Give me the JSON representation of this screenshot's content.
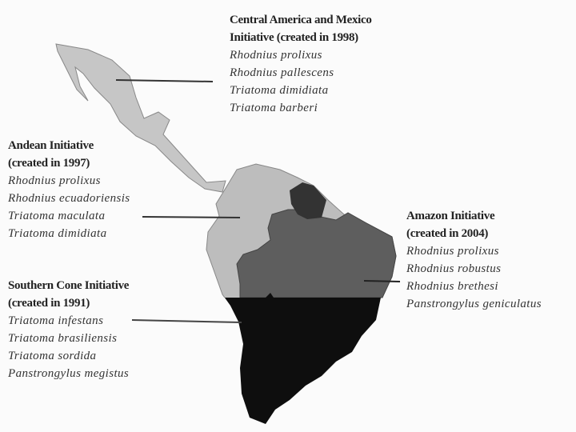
{
  "regions": [
    {
      "id": "central",
      "title": [
        "Central America and Mexico",
        "Initiative (created in 1998)"
      ],
      "species": [
        "Rhodnius prolixus",
        "Rhodnius pallescens",
        "Triatoma dimidiata",
        "Triatoma barberi"
      ],
      "color": "#c6c6c6"
    },
    {
      "id": "andean",
      "title": [
        "Andean Initiative",
        "(created in 1997)"
      ],
      "species": [
        "Rhodnius prolixus",
        "Rhodnius ecuadoriensis",
        "Triatoma maculata",
        "Triatoma dimidiata"
      ],
      "color": "#bdbdbd"
    },
    {
      "id": "amazon",
      "title": [
        "Amazon Initiative",
        "(created in 2004)"
      ],
      "species": [
        "Rhodnius prolixus",
        "Rhodnius robustus",
        "Rhodnius brethesi",
        "Panstrongylus geniculatus"
      ],
      "color": "#5e5e5e"
    },
    {
      "id": "southern",
      "title": [
        "Southern Cone Initiative",
        "(created in 1991)"
      ],
      "species": [
        "Triatoma infestans",
        "Triatoma brasiliensis",
        "Triatoma sordida",
        "Panstrongylus megistus"
      ],
      "color": "#0e0e0e"
    }
  ]
}
